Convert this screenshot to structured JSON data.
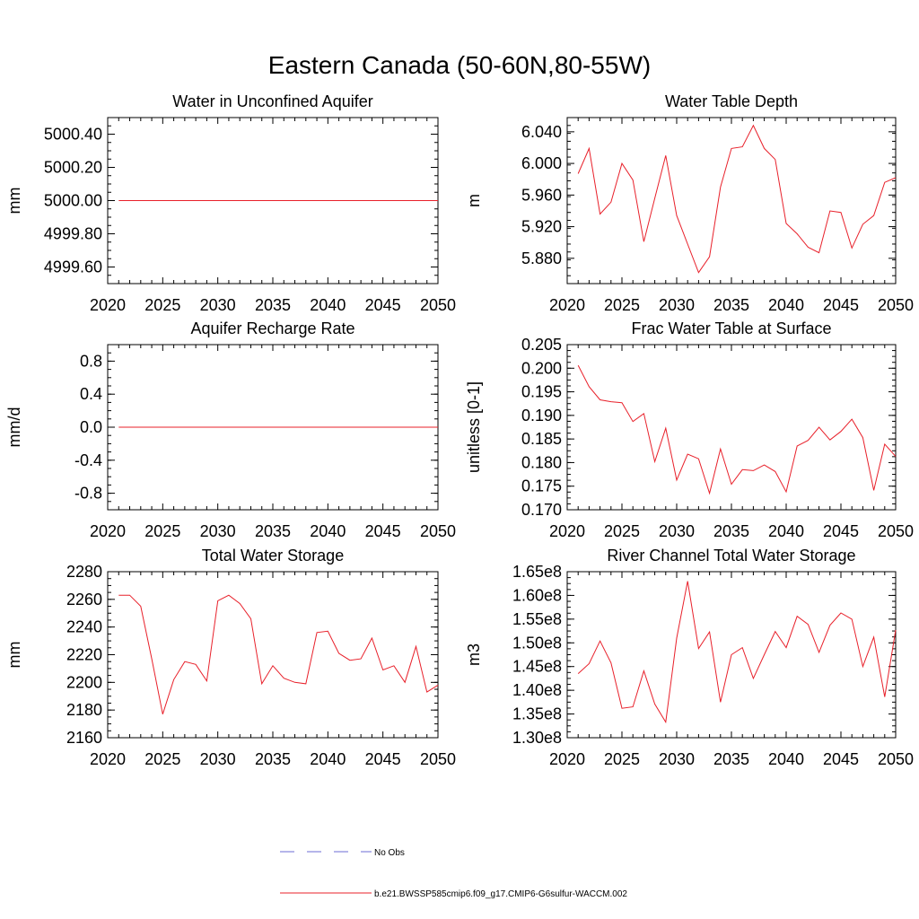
{
  "figure": {
    "title": "Eastern Canada (50-60N,80-55W)",
    "legend": [
      {
        "label": "No Obs",
        "color": "#6b6bd6",
        "style": "dashed"
      },
      {
        "label": "b.e21.BWSSP585cmip6.f09_g17.CMIP6-G6sulfur-WACCM.002",
        "color": "#e8202a",
        "style": "solid"
      }
    ],
    "line_color": "#e8202a"
  },
  "chart_data": [
    {
      "type": "line",
      "title": "Water in Unconfined Aquifer",
      "ylabel": "mm",
      "xlim": [
        2020,
        2050
      ],
      "ylim": [
        4999.5,
        5000.5
      ],
      "xticks": [
        2020,
        2025,
        2030,
        2035,
        2040,
        2045,
        2050
      ],
      "yticks": [
        4999.6,
        4999.8,
        5000.0,
        5000.2,
        5000.4
      ],
      "ytick_labels": [
        "4999.60",
        "4999.80",
        "5000.00",
        "5000.20",
        "5000.40"
      ],
      "x": [
        2021,
        2022,
        2023,
        2024,
        2025,
        2026,
        2027,
        2028,
        2029,
        2030,
        2031,
        2032,
        2033,
        2034,
        2035,
        2036,
        2037,
        2038,
        2039,
        2040,
        2041,
        2042,
        2043,
        2044,
        2045,
        2046,
        2047,
        2048,
        2049,
        2050
      ],
      "series": [
        {
          "values": [
            5000,
            5000,
            5000,
            5000,
            5000,
            5000,
            5000,
            5000,
            5000,
            5000,
            5000,
            5000,
            5000,
            5000,
            5000,
            5000,
            5000,
            5000,
            5000,
            5000,
            5000,
            5000,
            5000,
            5000,
            5000,
            5000,
            5000,
            5000,
            5000,
            5000
          ]
        }
      ]
    },
    {
      "type": "line",
      "title": "Water Table Depth",
      "ylabel": "m",
      "xlim": [
        2020,
        2050
      ],
      "ylim": [
        5.848,
        6.058
      ],
      "xticks": [
        2020,
        2025,
        2030,
        2035,
        2040,
        2045,
        2050
      ],
      "yticks": [
        5.88,
        5.92,
        5.96,
        6.0,
        6.04
      ],
      "ytick_labels": [
        "5.880",
        "5.920",
        "5.960",
        "6.000",
        "6.040"
      ],
      "x": [
        2021,
        2022,
        2023,
        2024,
        2025,
        2026,
        2027,
        2028,
        2029,
        2030,
        2031,
        2032,
        2033,
        2034,
        2035,
        2036,
        2037,
        2038,
        2039,
        2040,
        2041,
        2042,
        2043,
        2044,
        2045,
        2046,
        2047,
        2048,
        2049,
        2050
      ],
      "series": [
        {
          "values": [
            5.987,
            6.019,
            5.936,
            5.951,
            6.0,
            5.979,
            5.901,
            5.956,
            6.01,
            5.934,
            5.898,
            5.862,
            5.882,
            5.97,
            6.019,
            6.021,
            6.048,
            6.019,
            6.005,
            5.924,
            5.911,
            5.894,
            5.887,
            5.94,
            5.938,
            5.893,
            5.923,
            5.934,
            5.976,
            5.982
          ]
        }
      ]
    },
    {
      "type": "line",
      "title": "Aquifer Recharge Rate",
      "ylabel": "mm/d",
      "xlim": [
        2020,
        2050
      ],
      "ylim": [
        -1.0,
        1.0
      ],
      "xticks": [
        2020,
        2025,
        2030,
        2035,
        2040,
        2045,
        2050
      ],
      "yticks": [
        -0.8,
        -0.4,
        0.0,
        0.4,
        0.8
      ],
      "ytick_labels": [
        "-0.8",
        "-0.4",
        "0.0",
        "0.4",
        "0.8"
      ],
      "x": [
        2021,
        2022,
        2023,
        2024,
        2025,
        2026,
        2027,
        2028,
        2029,
        2030,
        2031,
        2032,
        2033,
        2034,
        2035,
        2036,
        2037,
        2038,
        2039,
        2040,
        2041,
        2042,
        2043,
        2044,
        2045,
        2046,
        2047,
        2048,
        2049,
        2050
      ],
      "series": [
        {
          "values": [
            0,
            0,
            0,
            0,
            0,
            0,
            0,
            0,
            0,
            0,
            0,
            0,
            0,
            0,
            0,
            0,
            0,
            0,
            0,
            0,
            0,
            0,
            0,
            0,
            0,
            0,
            0,
            0,
            0,
            0
          ]
        }
      ]
    },
    {
      "type": "line",
      "title": "Frac Water Table at Surface",
      "ylabel": "unitless [0-1]",
      "xlim": [
        2020,
        2050
      ],
      "ylim": [
        0.17,
        0.205
      ],
      "xticks": [
        2020,
        2025,
        2030,
        2035,
        2040,
        2045,
        2050
      ],
      "yticks": [
        0.17,
        0.175,
        0.18,
        0.185,
        0.19,
        0.195,
        0.2,
        0.205
      ],
      "ytick_labels": [
        "0.170",
        "0.175",
        "0.180",
        "0.185",
        "0.190",
        "0.195",
        "0.200",
        "0.205"
      ],
      "x": [
        2021,
        2022,
        2023,
        2024,
        2025,
        2026,
        2027,
        2028,
        2029,
        2030,
        2031,
        2032,
        2033,
        2034,
        2035,
        2036,
        2037,
        2038,
        2039,
        2040,
        2041,
        2042,
        2043,
        2044,
        2045,
        2046,
        2047,
        2048,
        2049,
        2050
      ],
      "series": [
        {
          "values": [
            0.2006,
            0.1961,
            0.1933,
            0.1929,
            0.1927,
            0.1887,
            0.1904,
            0.1802,
            0.1873,
            0.1763,
            0.1818,
            0.1808,
            0.1735,
            0.1829,
            0.1754,
            0.1785,
            0.1783,
            0.1795,
            0.1781,
            0.1738,
            0.1835,
            0.1847,
            0.1875,
            0.1848,
            0.1866,
            0.1892,
            0.1853,
            0.1741,
            0.1839,
            0.1813
          ]
        }
      ]
    },
    {
      "type": "line",
      "title": "Total Water Storage",
      "ylabel": "mm",
      "xlim": [
        2020,
        2050
      ],
      "ylim": [
        2160,
        2280
      ],
      "xticks": [
        2020,
        2025,
        2030,
        2035,
        2040,
        2045,
        2050
      ],
      "yticks": [
        2160,
        2180,
        2200,
        2220,
        2240,
        2260,
        2280
      ],
      "ytick_labels": [
        "2160",
        "2180",
        "2200",
        "2220",
        "2240",
        "2260",
        "2280"
      ],
      "x": [
        2021,
        2022,
        2023,
        2024,
        2025,
        2026,
        2027,
        2028,
        2029,
        2030,
        2031,
        2032,
        2033,
        2034,
        2035,
        2036,
        2037,
        2038,
        2039,
        2040,
        2041,
        2042,
        2043,
        2044,
        2045,
        2046,
        2047,
        2048,
        2049,
        2050
      ],
      "series": [
        {
          "values": [
            2263,
            2263,
            2255,
            2217,
            2177,
            2202,
            2215,
            2213,
            2201,
            2259,
            2263,
            2257,
            2246,
            2199,
            2212,
            2203,
            2200,
            2199,
            2236,
            2237,
            2221,
            2216,
            2217,
            2232,
            2209,
            2212,
            2200,
            2226,
            2193,
            2198
          ]
        }
      ]
    },
    {
      "type": "line",
      "title": "River Channel Total Water Storage",
      "ylabel": "m3",
      "xlim": [
        2020,
        2050
      ],
      "ylim": [
        130000000,
        165000000
      ],
      "xticks": [
        2020,
        2025,
        2030,
        2035,
        2040,
        2045,
        2050
      ],
      "yticks": [
        130000000,
        135000000,
        140000000,
        145000000,
        150000000,
        155000000,
        160000000,
        165000000
      ],
      "ytick_labels": [
        "1.30e8",
        "1.35e8",
        "1.40e8",
        "1.45e8",
        "1.50e8",
        "1.55e8",
        "1.60e8",
        "1.65e8"
      ],
      "x": [
        2021,
        2022,
        2023,
        2024,
        2025,
        2026,
        2027,
        2028,
        2029,
        2030,
        2031,
        2032,
        2033,
        2034,
        2035,
        2036,
        2037,
        2038,
        2039,
        2040,
        2041,
        2042,
        2043,
        2044,
        2045,
        2046,
        2047,
        2048,
        2049,
        2050
      ],
      "series": [
        {
          "values": [
            143500000,
            145600000,
            150400000,
            145800000,
            136200000,
            136500000,
            144100000,
            137100000,
            133300000,
            151000000,
            163000000,
            148800000,
            152300000,
            137500000,
            147500000,
            149000000,
            142500000,
            147500000,
            152400000,
            149000000,
            155600000,
            153900000,
            148000000,
            153700000,
            156300000,
            155000000,
            145000000,
            151200000,
            138600000,
            152700000
          ]
        }
      ]
    }
  ]
}
